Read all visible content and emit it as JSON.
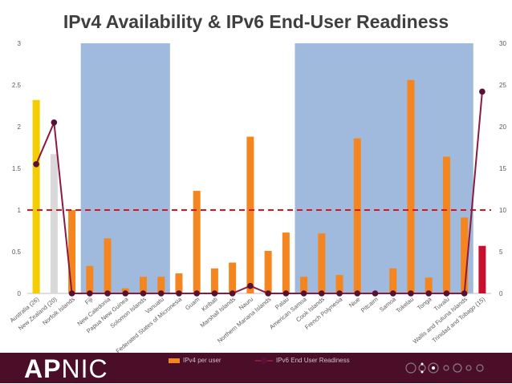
{
  "title": "IPv4 Availability & IPv6 End-User Readiness",
  "footer": {
    "logo_main": "APNIC"
  },
  "legend": {
    "bar_label": "IPv4 per user",
    "line_label": "IPv6 End User Readiness"
  },
  "chart_data": {
    "type": "bar",
    "title": "IPv4 Availability & IPv6 End-User Readiness",
    "categories": [
      "Australia (26)",
      "New Zealand (20)",
      "Norfolk Islands",
      "Fiji",
      "New Caledonia",
      "Papua New Guinea",
      "Solomon Islands",
      "Vanuatu",
      "Federated States of Micronesia",
      "Guam",
      "Kiribati",
      "Marshall Islands",
      "Nauru",
      "Northern Mariana Islands",
      "Palau",
      "American Samoa",
      "Cook Islands",
      "French Polynesia",
      "Niue",
      "Pitcairn",
      "Samoa",
      "Tokelau",
      "Tonga",
      "Tuvalu",
      "Wallis and Futuna Islands",
      "Trinidad and Tobago (15)"
    ],
    "series": [
      {
        "name": "IPv4 per user",
        "axis": "left",
        "type": "bar",
        "color": "#f5861f",
        "values": [
          2.32,
          1.67,
          1.0,
          0.33,
          0.66,
          0.06,
          0.2,
          0.2,
          0.24,
          1.23,
          0.3,
          0.37,
          1.88,
          0.51,
          0.73,
          0.2,
          0.72,
          0.22,
          1.86,
          0.0,
          0.3,
          2.56,
          0.19,
          1.64,
          0.91,
          0.57
        ],
        "bar_colors": [
          "#f5cc00",
          "#d9d9d9",
          "#f5861f",
          "#f5861f",
          "#f5861f",
          "#f5861f",
          "#f5861f",
          "#f5861f",
          "#f5861f",
          "#f5861f",
          "#f5861f",
          "#f5861f",
          "#f5861f",
          "#f5861f",
          "#f5861f",
          "#f5861f",
          "#f5861f",
          "#f5861f",
          "#f5861f",
          "#f5861f",
          "#f5861f",
          "#f5861f",
          "#f5861f",
          "#f5861f",
          "#f5861f",
          "#c8102e"
        ]
      },
      {
        "name": "IPv6 End User Readiness",
        "axis": "right",
        "type": "line",
        "color": "#8b1a3f",
        "values": [
          15.5,
          20.5,
          0,
          0,
          0,
          0,
          0,
          0,
          0,
          0,
          0,
          0,
          0.9,
          0,
          0,
          0,
          0,
          0,
          0,
          0,
          0,
          0,
          0,
          0,
          0,
          24.2
        ]
      }
    ],
    "y_left": {
      "min": 0,
      "max": 3,
      "ticks": [
        "0",
        "0.5",
        "1",
        "1.5",
        "2",
        "2.5",
        "3"
      ]
    },
    "y_right": {
      "min": 0,
      "max": 30,
      "ticks": [
        "0",
        "5",
        "10",
        "15",
        "20",
        "25",
        "30"
      ]
    },
    "reference_line": {
      "axis": "left",
      "value": 1,
      "color": "#d9141b",
      "style": "dashed"
    },
    "shaded_regions": [
      {
        "from": "Fiji",
        "to": "Vanuatu",
        "color": "#9fbadc"
      },
      {
        "from": "American Samoa",
        "to": "Wallis and Futuna Islands",
        "color": "#9fbadc"
      }
    ],
    "grid": false,
    "legend_position": "bottom"
  }
}
